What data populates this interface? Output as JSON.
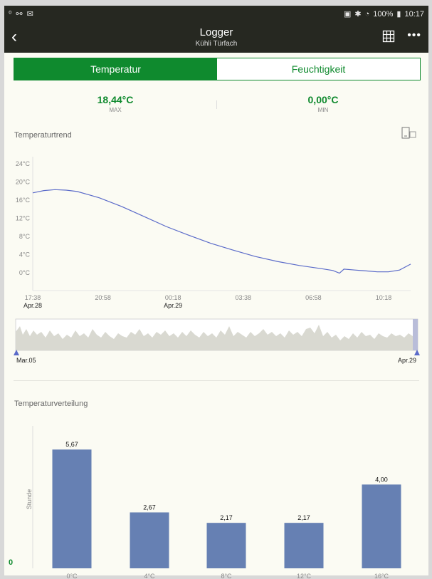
{
  "statusbar": {
    "left_icons": [
      "notification-icon",
      "link-icon",
      "gmail-icon"
    ],
    "right_icons": [
      "cast-icon",
      "bluetooth-icon",
      "wifi-icon"
    ],
    "battery": "100%",
    "time": "10:17"
  },
  "appbar": {
    "back": "‹",
    "title": "Logger",
    "subtitle": "Kühli Türfach",
    "more": "•••"
  },
  "tabs": [
    {
      "label": "Temperatur",
      "active": true
    },
    {
      "label": "Feuchtigkeit",
      "active": false
    }
  ],
  "stats": {
    "max_value": "18,44°C",
    "max_label": "MAX",
    "min_value": "0,00°C",
    "min_label": "MIN"
  },
  "trend": {
    "title": "Temperaturtrend",
    "nav_start": "Mar.05",
    "nav_end": "Apr.29"
  },
  "distribution": {
    "title": "Temperaturverteilung"
  },
  "chart_data": [
    {
      "type": "line",
      "title": "Temperaturtrend",
      "ylim": [
        0,
        24
      ],
      "yticks": [
        "24°C",
        "20°C",
        "16°C",
        "12°C",
        "8°C",
        "4°C",
        "0°C"
      ],
      "ytick_values": [
        24,
        20,
        16,
        12,
        8,
        4,
        0
      ],
      "xticks": [
        "17:38",
        "20:58",
        "00:18",
        "03:38",
        "06:58",
        "10:18"
      ],
      "xtick_dates": [
        "Apr.28",
        "",
        "Apr.29",
        "",
        "",
        ""
      ],
      "grid": false,
      "color": "#5b6bc9",
      "series": [
        {
          "x": [
            0,
            0.5,
            1,
            1.5,
            2,
            2.5,
            3,
            4,
            5,
            6,
            7,
            8,
            9,
            10,
            11,
            12,
            13,
            13.5,
            13.8,
            14,
            14.5,
            15,
            15.5,
            16,
            16.5,
            17
          ],
          "values": [
            17.6,
            18.1,
            18.3,
            18.2,
            17.9,
            17.2,
            16.5,
            14.6,
            12.4,
            10.2,
            8.3,
            6.5,
            5.0,
            3.6,
            2.5,
            1.6,
            0.9,
            0.5,
            -0.1,
            0.8,
            0.6,
            0.4,
            0.2,
            0.2,
            0.6,
            1.9
          ]
        }
      ]
    },
    {
      "type": "bar",
      "title": "Temperaturverteilung",
      "ylabel": "Stunde",
      "categories": [
        "0°C",
        "4°C",
        "8°C",
        "12°C",
        "16°C"
      ],
      "values": [
        5.67,
        2.67,
        2.17,
        2.17,
        4.0
      ],
      "labels": [
        "5,67",
        "2,67",
        "2,17",
        "2,17",
        "4,00"
      ],
      "ylim": [
        0,
        6.8
      ],
      "color": "#6680b3"
    }
  ],
  "fab": "0"
}
